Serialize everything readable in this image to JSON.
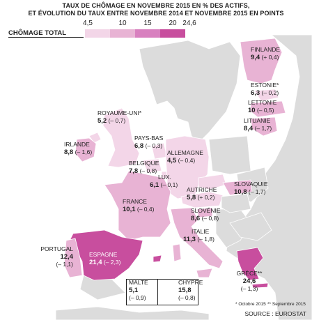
{
  "title_lines": [
    "TAUX DE CHÔMAGE EN NOVEMBRE 2015 EN % DES ACTIFS,",
    "ET ÉVOLUTION DU TAUX ENTRE NOVEMBRE 2014 ET NOVEMBRE 2015 EN POINTS"
  ],
  "legend": {
    "label": "CHÔMAGE TOTAL",
    "ticks": [
      "4,5",
      "10",
      "15",
      "20",
      "24,6"
    ],
    "colors": [
      "#f3d6e8",
      "#e8b3d4",
      "#d880bf",
      "#c84e9e"
    ]
  },
  "countries": {
    "finlande": {
      "name": "FINLANDE",
      "value": "9,4",
      "change": "(+ 0,4)"
    },
    "estonie": {
      "name": "ESTONIE*",
      "value": "6,3",
      "change": "(– 0,2)"
    },
    "lettonie": {
      "name": "LETTONIE",
      "value": "10",
      "change": "(– 0,5)"
    },
    "lituanie": {
      "name": "LITUANIE",
      "value": "8,4",
      "change": "(– 1,7)"
    },
    "royaume_uni": {
      "name": "ROYAUME-UNI*",
      "value": "5,2",
      "change": "(– 0,7)"
    },
    "irlande": {
      "name": "IRLANDE",
      "value": "8,8",
      "change": "(– 1,6)"
    },
    "pays_bas": {
      "name": "PAYS-BAS",
      "value": "6,8",
      "change": "(– 0,3)"
    },
    "allemagne": {
      "name": "ALLEMAGNE",
      "value": "4,5",
      "change": "(– 0,4)"
    },
    "belgique": {
      "name": "BELGIQUE",
      "value": "7,8",
      "change": "(– 0,8)"
    },
    "lux": {
      "name": "LUX.",
      "value": "6,1",
      "change": "(– 0,1)"
    },
    "slovaquie": {
      "name": "SLOVAQUIE",
      "value": "10,8",
      "change": "(– 1,7)"
    },
    "autriche": {
      "name": "AUTRICHE",
      "value": "5,8",
      "change": "(+ 0,2)"
    },
    "france": {
      "name": "FRANCE",
      "value": "10,1",
      "change": "(– 0,4)"
    },
    "slovenie": {
      "name": "SLOVÉNIE",
      "value": "8,6",
      "change": "(– 0,8)"
    },
    "italie": {
      "name": "ITALIE",
      "value": "11,3",
      "change": "(– 1,8)"
    },
    "portugal": {
      "name": "PORTUGAL",
      "value": "12,4",
      "change": "(– 1,1)"
    },
    "espagne": {
      "name": "ESPAGNE",
      "value": "21,4",
      "change": "(– 2,3)"
    },
    "grece": {
      "name": "GRÈCE**",
      "value": "24,6",
      "change": "(– 1,3)"
    },
    "malte": {
      "name": "MALTE",
      "value": "5,1",
      "change": "(– 0,9)"
    },
    "chypre": {
      "name": "CHYPRE",
      "value": "15,8",
      "change": "(– 0,8)"
    }
  },
  "footnotes": {
    "note1": "* Octobre 2015",
    "note2": "** Septembre 2015"
  },
  "source": "SOURCE : EUROSTAT"
}
